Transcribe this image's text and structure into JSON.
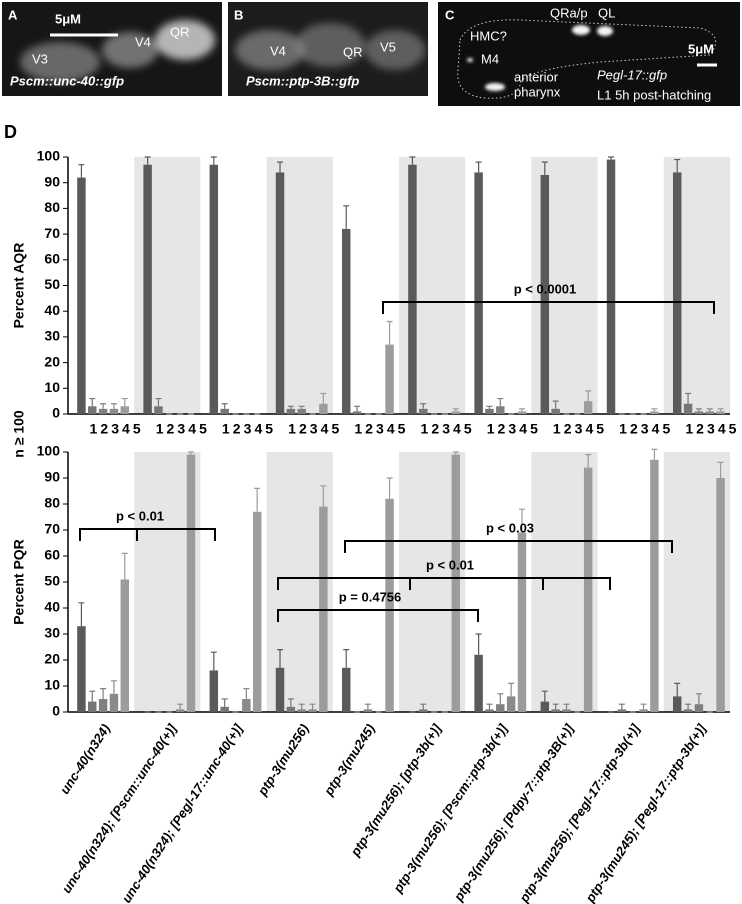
{
  "panels": [
    {
      "letter": "A",
      "labels": [
        "5μM",
        "V4",
        "QR",
        "V3"
      ],
      "caption": "Pscm::unc-40::gfp"
    },
    {
      "letter": "B",
      "labels": [
        "V4",
        "QR",
        "V5"
      ],
      "caption": "Pscm::ptp-3B::gfp"
    },
    {
      "letter": "C",
      "labels": [
        "QRa/p",
        "QL",
        "HMC?",
        "M4",
        "anterior",
        "pharynx",
        "5μM"
      ],
      "caption": "Pegl-17::gfp",
      "subcaption": "L1 5h post-hatching"
    }
  ],
  "figure_letter": "D",
  "sample_size": "n ≥ 100",
  "chart_data": [
    {
      "type": "bar",
      "ylabel": "Percent AQR",
      "ylim": [
        0,
        100
      ],
      "yticks": [
        0,
        10,
        20,
        30,
        40,
        50,
        60,
        70,
        80,
        90,
        100
      ],
      "categories": [
        null,
        null,
        null,
        null,
        null,
        null,
        null,
        null,
        null,
        null
      ],
      "series": [
        {
          "name": "1",
          "color": "#5a5a5a",
          "values": [
            92,
            97,
            97,
            94,
            72,
            97,
            94,
            93,
            99,
            94
          ],
          "errors": [
            5,
            3,
            3,
            4,
            9,
            3,
            4,
            5,
            1,
            5
          ]
        },
        {
          "name": "2",
          "color": "#767676",
          "values": [
            3,
            3,
            2,
            2,
            1,
            2,
            2,
            2,
            0,
            4
          ],
          "errors": [
            3,
            3,
            2,
            1,
            2,
            2,
            1,
            3,
            0,
            4
          ]
        },
        {
          "name": "3",
          "color": "#808080",
          "values": [
            2,
            0,
            0,
            2,
            0,
            0,
            3,
            0,
            0,
            1
          ],
          "errors": [
            2,
            0,
            0,
            1,
            0,
            0,
            3,
            0,
            0,
            1
          ]
        },
        {
          "name": "4",
          "color": "#8a8a8a",
          "values": [
            2,
            0,
            0,
            0,
            0,
            0,
            0,
            0,
            0,
            1
          ],
          "errors": [
            2,
            0,
            0,
            0,
            0,
            0,
            0,
            0,
            0,
            1
          ]
        },
        {
          "name": "5",
          "color": "#9c9c9c",
          "values": [
            3,
            0,
            0,
            4,
            27,
            1,
            1,
            5,
            1,
            1
          ],
          "errors": [
            3,
            0,
            0,
            4,
            9,
            1,
            1,
            4,
            1,
            1
          ]
        }
      ],
      "annotations": [
        "p < 0.0001"
      ]
    },
    {
      "type": "bar",
      "ylabel": "Percent PQR",
      "ylim": [
        0,
        100
      ],
      "yticks": [
        0,
        10,
        20,
        30,
        40,
        50,
        60,
        70,
        80,
        90,
        100
      ],
      "categories": [
        "unc-40(n324)",
        "unc-40(n324); [Pscm::unc-40(+)]",
        "unc-40(n324); [Pegl-17::unc-40(+)]",
        "ptp-3(mu256)",
        "ptp-3(mu245)",
        "ptp-3(mu256); [ptp-3b(+)]",
        "ptp-3(mu256); [Pscm::ptp-3b(+)]",
        "ptp-3(mu256); [Pdpy-7::ptp-3B(+)]",
        "ptp-3(mu256); [Pegl-17::ptp-3b(+)]",
        "ptp-3(mu245); [Pegl-17::ptp-3b(+)]"
      ],
      "series": [
        {
          "color": "#5a5a5a",
          "values": [
            33,
            0,
            16,
            17,
            17,
            0,
            22,
            4,
            0,
            6
          ],
          "errors": [
            9,
            0,
            7,
            7,
            7,
            0,
            8,
            4,
            0,
            5
          ]
        },
        {
          "color": "#767676",
          "values": [
            4,
            0,
            2,
            2,
            0,
            1,
            1,
            1,
            1,
            1
          ],
          "errors": [
            4,
            0,
            3,
            3,
            0,
            2,
            2,
            2,
            2,
            2
          ]
        },
        {
          "color": "#808080",
          "values": [
            5,
            0,
            0,
            1,
            1,
            0,
            3,
            1,
            0,
            3
          ],
          "errors": [
            4,
            0,
            0,
            2,
            2,
            0,
            4,
            2,
            0,
            4
          ]
        },
        {
          "color": "#8a8a8a",
          "values": [
            7,
            1,
            5,
            1,
            0,
            0,
            6,
            0,
            1,
            0
          ],
          "errors": [
            5,
            2,
            4,
            2,
            0,
            0,
            5,
            0,
            2,
            0
          ]
        },
        {
          "color": "#9c9c9c",
          "values": [
            51,
            99,
            77,
            79,
            82,
            99,
            69,
            94,
            97,
            90
          ],
          "errors": [
            10,
            1,
            9,
            8,
            8,
            1,
            9,
            5,
            4,
            6
          ]
        }
      ],
      "annotations": [
        "p < 0.01",
        "p < 0.03",
        "p < 0.01",
        "p = 0.4756"
      ]
    }
  ]
}
